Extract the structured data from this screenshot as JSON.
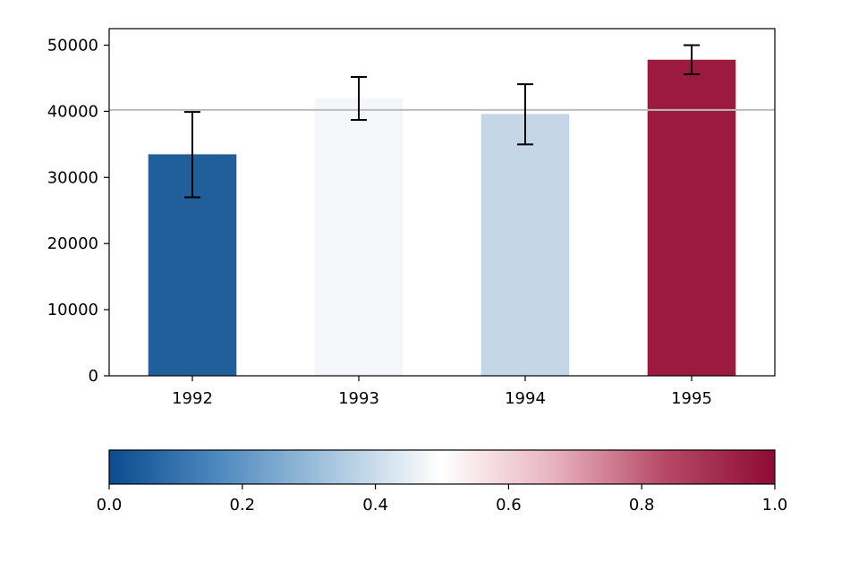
{
  "chart_data": {
    "type": "bar",
    "categories": [
      "1992",
      "1993",
      "1994",
      "1995"
    ],
    "values": [
      33500,
      42000,
      39600,
      47800
    ],
    "error_low": [
      27000,
      38700,
      35000,
      45600
    ],
    "error_high": [
      39900,
      45200,
      44100,
      50000
    ],
    "bar_colors": [
      "#215f9a",
      "#f4f6fa",
      "#c5d6e6",
      "#9c193f"
    ],
    "reference_line": {
      "value": 40200,
      "color": "#bbbbbb"
    },
    "title": "",
    "xlabel": "",
    "ylabel": "",
    "ylim": [
      0,
      52500
    ],
    "yticks": [
      0,
      10000,
      20000,
      30000,
      40000,
      50000
    ],
    "grid": false,
    "colorbar": {
      "orientation": "horizontal",
      "position": "bottom",
      "colormap": "RdBu_r",
      "range": [
        0.0,
        1.0
      ],
      "ticks": [
        "0.0",
        "0.2",
        "0.4",
        "0.6",
        "0.8",
        "1.0"
      ],
      "stops": [
        "#0a4b8f",
        "#4f8ac0",
        "#a7c5de",
        "#ffffff",
        "#e8b3c0",
        "#b74a67",
        "#8d0b34"
      ]
    }
  }
}
